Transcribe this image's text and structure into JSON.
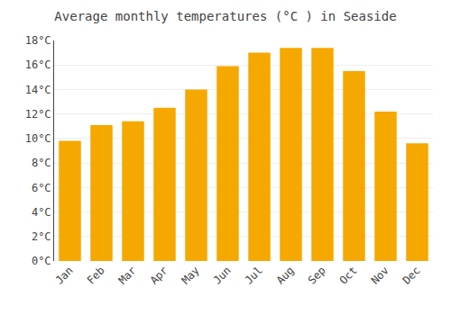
{
  "chart_data": {
    "type": "bar",
    "title": "Average monthly temperatures (°C ) in Seaside",
    "categories": [
      "Jan",
      "Feb",
      "Mar",
      "Apr",
      "May",
      "Jun",
      "Jul",
      "Aug",
      "Sep",
      "Oct",
      "Nov",
      "Dec"
    ],
    "values": [
      9.8,
      11.1,
      11.4,
      12.5,
      14.0,
      15.9,
      17.0,
      17.4,
      17.4,
      15.5,
      12.2,
      9.6
    ],
    "color": "#F5A800",
    "ylim": [
      0,
      18
    ],
    "yticks": [
      {
        "value": 0,
        "label": "0°C"
      },
      {
        "value": 2,
        "label": "2°C"
      },
      {
        "value": 4,
        "label": "4°C"
      },
      {
        "value": 6,
        "label": "6°C"
      },
      {
        "value": 8,
        "label": "8°C"
      },
      {
        "value": 10,
        "label": "10°C"
      },
      {
        "value": 12,
        "label": "12°C"
      },
      {
        "value": 14,
        "label": "14°C"
      },
      {
        "value": 16,
        "label": "16°C"
      },
      {
        "value": 18,
        "label": "18°C"
      }
    ],
    "grid": true
  }
}
